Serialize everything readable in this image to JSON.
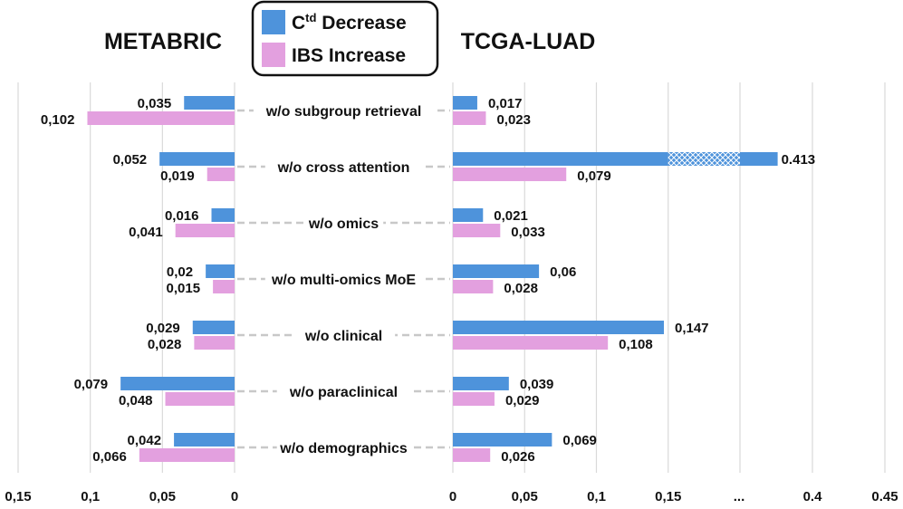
{
  "chart_data": [
    {
      "type": "bar",
      "orientation": "horizontal",
      "title": "METABRIC",
      "direction": "leftward",
      "xlim": [
        0,
        0.15
      ],
      "xticks": [
        "0,15",
        "0,1",
        "0,05",
        "0"
      ],
      "categories": [
        "w/o subgroup retrieval",
        "w/o cross attention",
        "w/o omics",
        "w/o multi-omics MoE",
        "w/o clinical",
        "w/o paraclinical",
        "w/o demographics"
      ],
      "series": [
        {
          "name": "Ctd Decrease",
          "values": [
            0.035,
            0.052,
            0.016,
            0.02,
            0.029,
            0.079,
            0.042
          ],
          "labels": [
            "0,035",
            "0,052",
            "0,016",
            "0,02",
            "0,029",
            "0,079",
            "0,042"
          ]
        },
        {
          "name": "IBS Increase",
          "values": [
            0.102,
            0.019,
            0.041,
            0.015,
            0.028,
            0.048,
            0.066
          ],
          "labels": [
            "0,102",
            "0,019",
            "0,041",
            "0,015",
            "0,028",
            "0,048",
            "0,066"
          ]
        }
      ]
    },
    {
      "type": "bar",
      "orientation": "horizontal",
      "title": "TCGA-LUAD",
      "direction": "rightward",
      "xlim": [
        0,
        0.45
      ],
      "axis_break": {
        "from": 0.15,
        "to": 0.4
      },
      "xticks": [
        "0",
        "0,05",
        "0,1",
        "0,15",
        "...",
        "0.4",
        "0.45"
      ],
      "categories": [
        "w/o subgroup retrieval",
        "w/o cross attention",
        "w/o omics",
        "w/o multi-omics MoE",
        "w/o clinical",
        "w/o paraclinical",
        "w/o demographics"
      ],
      "series": [
        {
          "name": "Ctd Decrease",
          "values": [
            0.017,
            0.413,
            0.021,
            0.06,
            0.147,
            0.039,
            0.069
          ],
          "labels": [
            "0,017",
            "0.413",
            "0,021",
            "0,06",
            "0,147",
            "0,039",
            "0,069"
          ]
        },
        {
          "name": "IBS Increase",
          "values": [
            0.023,
            0.079,
            0.033,
            0.028,
            0.108,
            0.029,
            0.026
          ],
          "labels": [
            "0,023",
            "0,079",
            "0,033",
            "0,028",
            "0,108",
            "0,029",
            "0,026"
          ]
        }
      ]
    }
  ],
  "legend": {
    "items": [
      {
        "label_main": "C",
        "label_sup": "td",
        "label_rest": " Decrease",
        "color": "#4E93DB"
      },
      {
        "label_main": "IBS Increase",
        "label_sup": "",
        "label_rest": "",
        "color": "#E3A0DF"
      }
    ]
  },
  "colors": {
    "ctd": "#4E93DB",
    "ibs": "#E3A0DF",
    "grid": "#D9D9D9",
    "connector": "#C8C8C8"
  }
}
